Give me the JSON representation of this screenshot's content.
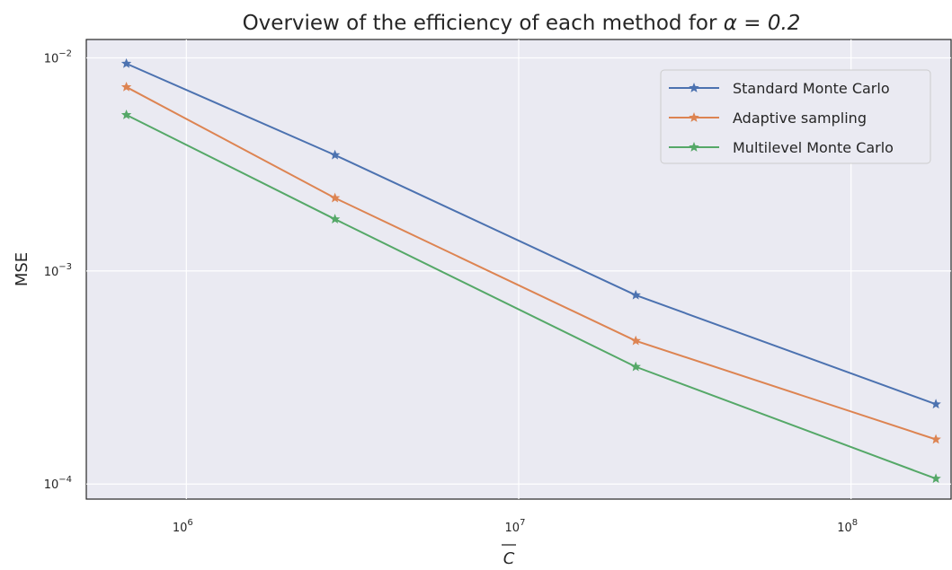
{
  "chart_data": {
    "type": "line",
    "title_prefix": "Overview of the efficiency of each method for ",
    "title_math": "α = 0.2",
    "xlabel": "C",
    "ylabel": "MSE",
    "xscale": "log",
    "yscale": "log",
    "xlim": [
      500000,
      200000000
    ],
    "ylim": [
      8.5e-05,
      0.0122
    ],
    "x_ticks": [
      {
        "value": 1000000,
        "base": "10",
        "exp": "6"
      },
      {
        "value": 10000000,
        "base": "10",
        "exp": "7"
      },
      {
        "value": 100000000,
        "base": "10",
        "exp": "8"
      }
    ],
    "y_ticks": [
      {
        "value": 0.01,
        "base": "10",
        "exp": "−2"
      },
      {
        "value": 0.001,
        "base": "10",
        "exp": "−3"
      },
      {
        "value": 0.0001,
        "base": "10",
        "exp": "−4"
      }
    ],
    "grid": true,
    "legend_position": "top-right",
    "x": [
      660000,
      2800000,
      22500000,
      180000000
    ],
    "series": [
      {
        "name": "Standard Monte Carlo",
        "color": "#4c72b0",
        "values": [
          0.0094,
          0.0035,
          0.00077,
          0.000237
        ]
      },
      {
        "name": "Adaptive sampling",
        "color": "#dd8452",
        "values": [
          0.0073,
          0.0022,
          0.00047,
          0.000162
        ]
      },
      {
        "name": "Multilevel Monte Carlo",
        "color": "#55a868",
        "values": [
          0.0054,
          0.00175,
          0.000355,
          0.000106
        ]
      }
    ]
  }
}
